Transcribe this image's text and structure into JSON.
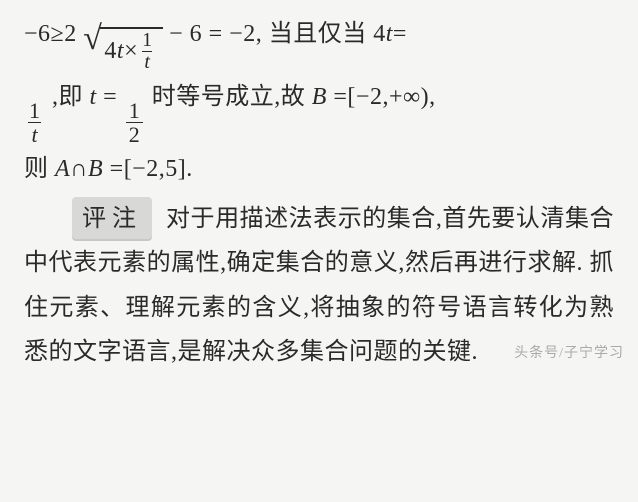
{
  "math": {
    "by_am_gm_prefix": "−6≥2",
    "sqrt_radicand_left": "4",
    "sqrt_var": "t",
    "sqrt_times": "×",
    "sqrt_frac_num": "1",
    "sqrt_frac_den": "t",
    "by_am_gm_suffix": " − 6 = −2,",
    "iff_text": "当且仅当 4",
    "iff_var": "t",
    "iff_eq": "=",
    "line2_frac_num": "1",
    "line2_frac_den": "t",
    "line2_after_frac1": ",即 ",
    "line2_var": "t",
    "line2_eq": "=",
    "line2_half_num": "1",
    "line2_half_den": "2",
    "line2_after_half": "时等号成立,故 ",
    "set_B": "B",
    "set_B_eq": "=[−2,+∞),",
    "line3_prefix": "则 ",
    "A_cap_B": "A∩B",
    "line3_result": "=[−2,5]."
  },
  "annotation": {
    "label": "评注",
    "body": "对于用描述法表示的集合,首先要认清集合中代表元素的属性,确定集合的意义,然后再进行求解. 抓住元素、理解元素的含义,将抽象的符号语言转化为熟悉的文字语言,是解决众多集合问题的关键."
  },
  "watermark": "头条号/子宁学习",
  "style": {
    "background": "#f5f5f3",
    "text_color": "#2a2a2a",
    "annot_bg": "#d8d8d6",
    "font_size_pt": 24,
    "line_height": 1.85,
    "sqrt_border_color": "#2a2a2a"
  }
}
